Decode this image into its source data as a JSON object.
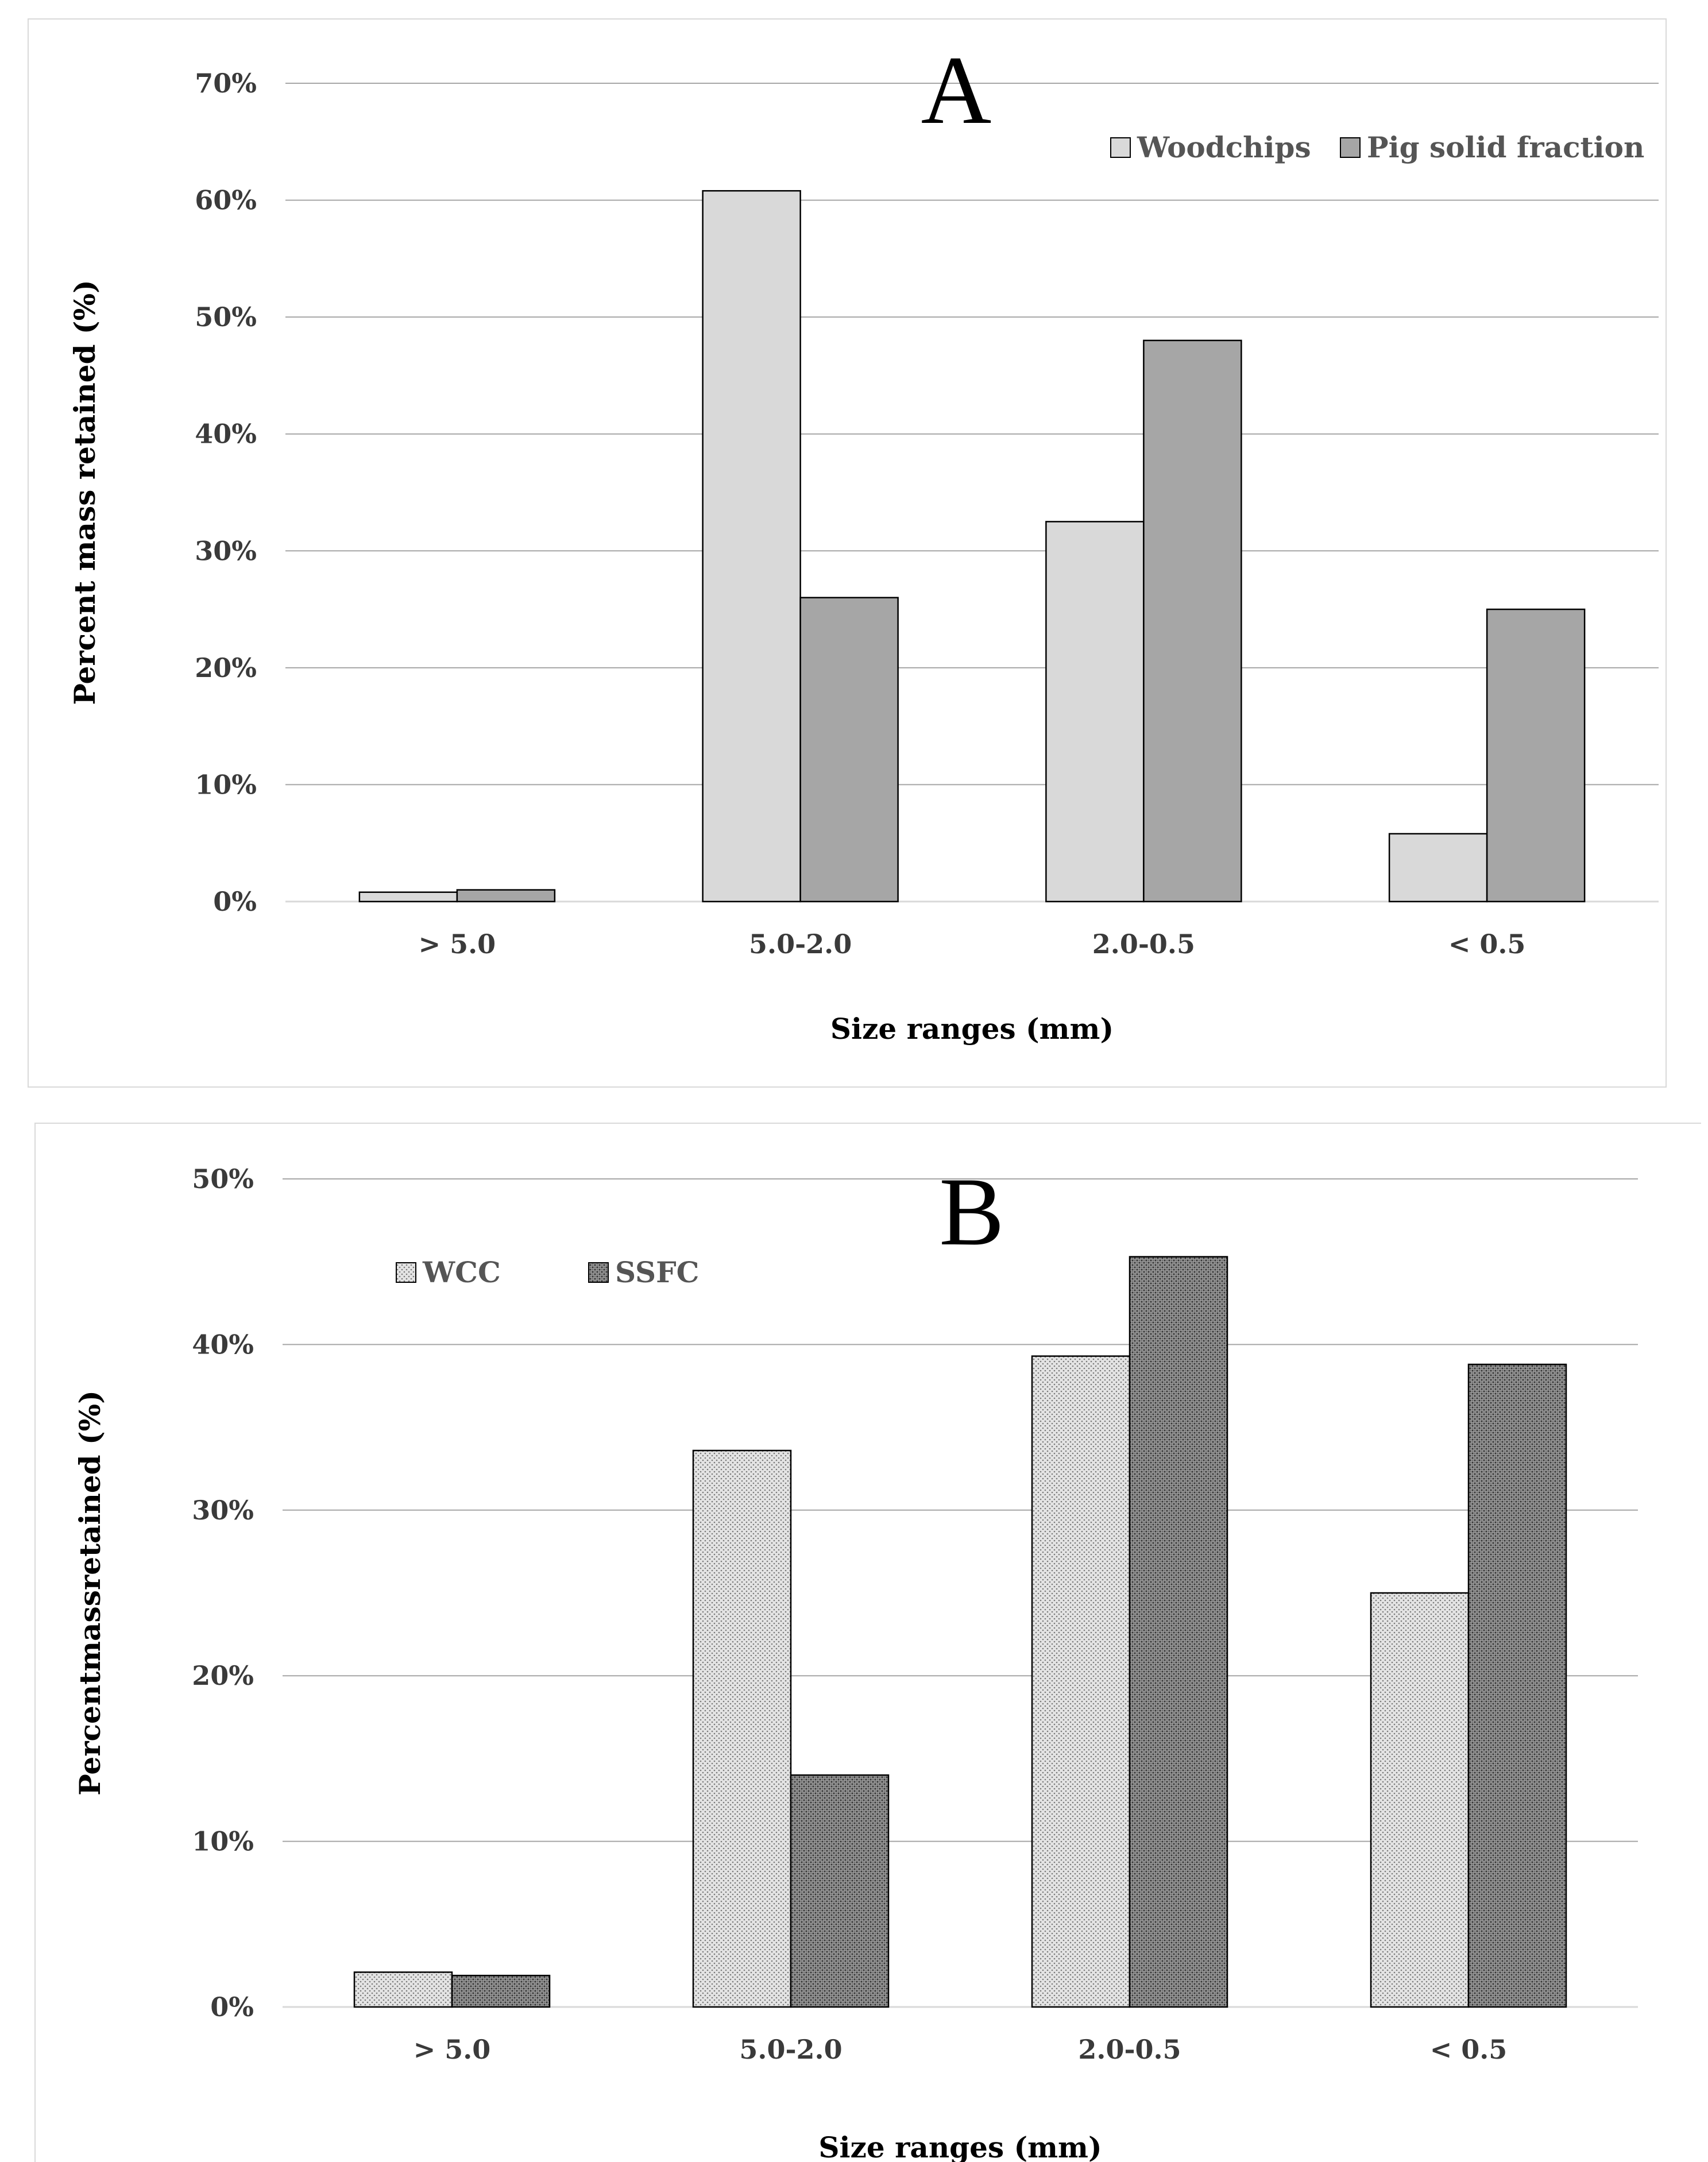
{
  "chart_data": [
    {
      "type": "bar",
      "panel_label": "A",
      "categories": [
        "> 5.0",
        "5.0-2.0",
        "2.0-0.5",
        "< 0.5"
      ],
      "series": [
        {
          "name": "Woodchips",
          "values": [
            0.8,
            60.8,
            32.5,
            5.8
          ],
          "color": "#d9d9d9",
          "pattern": "solid"
        },
        {
          "name": "Pig solid fraction",
          "values": [
            1.0,
            26.0,
            48.0,
            25.0
          ],
          "color": "#a6a6a6",
          "pattern": "solid"
        }
      ],
      "xlabel": "Size ranges (mm)",
      "ylabel": "Percent mass retained (%)",
      "ylim": [
        0,
        70
      ],
      "yticks": [
        "0%",
        "10%",
        "20%",
        "30%",
        "40%",
        "50%",
        "60%",
        "70%"
      ],
      "grid": true,
      "legend_position": "top-right"
    },
    {
      "type": "bar",
      "panel_label": "B",
      "categories": [
        "> 5.0",
        "5.0-2.0",
        "2.0-0.5",
        "< 0.5"
      ],
      "series": [
        {
          "name": "WCC",
          "values": [
            2.1,
            33.6,
            39.3,
            25.0
          ],
          "color": "#e4e4e4",
          "pattern": "light-dots"
        },
        {
          "name": "SSFC",
          "values": [
            1.9,
            14.0,
            45.3,
            38.8
          ],
          "color": "#9a9a9a",
          "pattern": "dense-dots"
        }
      ],
      "xlabel": "Size ranges (mm)",
      "ylabel": "Percentmassretained (%)",
      "ylim": [
        0,
        50
      ],
      "yticks": [
        "0%",
        "10%",
        "20%",
        "30%",
        "40%",
        "50%"
      ],
      "grid": true,
      "legend_position": "top-left"
    }
  ]
}
